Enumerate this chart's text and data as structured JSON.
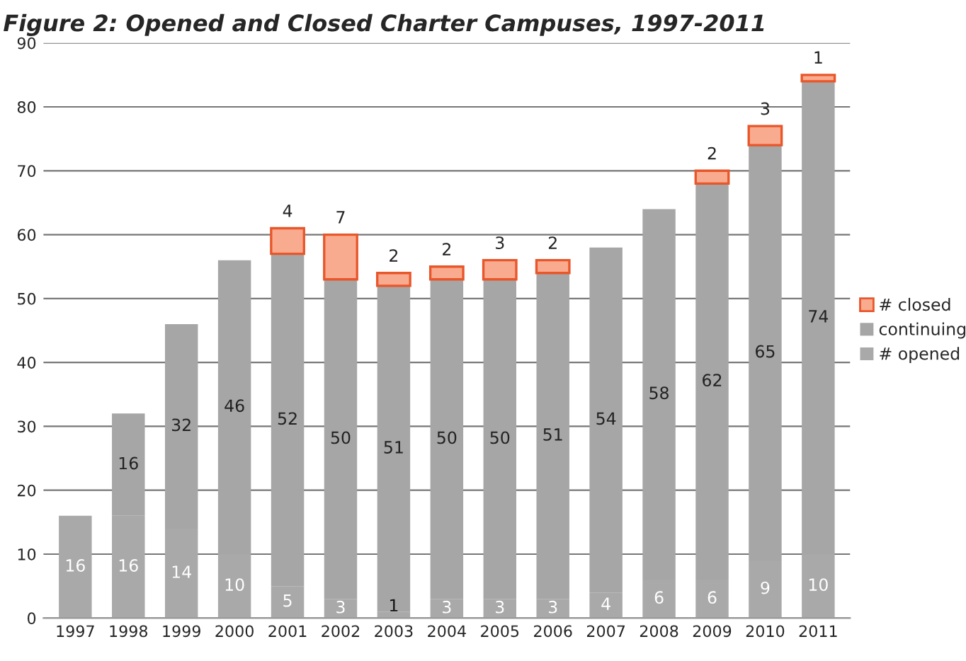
{
  "chart_data": {
    "type": "bar",
    "stacked": true,
    "title": "Figure 2: Opened and Closed Charter Campuses, 1997-2011",
    "categories": [
      "1997",
      "1998",
      "1999",
      "2000",
      "2001",
      "2002",
      "2003",
      "2004",
      "2005",
      "2006",
      "2007",
      "2008",
      "2009",
      "2010",
      "2011"
    ],
    "series": [
      {
        "name": "# opened",
        "color": "#a9a9a9",
        "values": [
          16,
          16,
          14,
          10,
          5,
          3,
          1,
          3,
          3,
          3,
          4,
          6,
          6,
          9,
          10
        ]
      },
      {
        "name": "continuing",
        "color": "#a6a6a6",
        "values": [
          null,
          16,
          32,
          46,
          52,
          50,
          51,
          50,
          50,
          51,
          54,
          58,
          62,
          65,
          74
        ]
      },
      {
        "name": "# closed",
        "color": "#f9ab8f",
        "values": [
          null,
          null,
          null,
          null,
          4,
          7,
          2,
          2,
          3,
          2,
          null,
          null,
          2,
          3,
          1
        ]
      }
    ],
    "ylim": [
      0,
      90
    ],
    "yticks": [
      0,
      10,
      20,
      30,
      40,
      50,
      60,
      70,
      80,
      90
    ],
    "grid": "y",
    "legend": "right",
    "data_labels": true
  }
}
